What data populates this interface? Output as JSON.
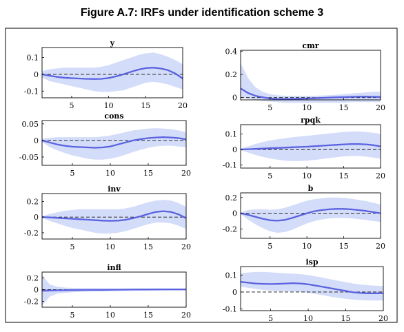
{
  "figure": {
    "title": "Figure A.7: IRFs under identification scheme 3"
  },
  "chart_data": [
    {
      "type": "line",
      "title": "y",
      "xlim": [
        1,
        20
      ],
      "ylim": [
        -0.14,
        0.16
      ],
      "xticks": [
        5,
        10,
        15,
        20
      ],
      "yticks": [
        0.1,
        0,
        -0.1
      ],
      "ytick_labels": [
        "0.1",
        "0",
        "-0.1"
      ],
      "x": [
        1,
        2,
        3,
        4,
        5,
        6,
        7,
        8,
        9,
        10,
        11,
        12,
        13,
        14,
        15,
        16,
        17,
        18,
        19,
        20
      ],
      "series": [
        {
          "values": [
            0,
            -0.008,
            -0.015,
            -0.02,
            -0.023,
            -0.025,
            -0.027,
            -0.028,
            -0.027,
            -0.022,
            -0.012,
            0,
            0.015,
            0.028,
            0.037,
            0.04,
            0.035,
            0.025,
            0.005,
            -0.025
          ],
          "lower": [
            -0.02,
            -0.04,
            -0.05,
            -0.06,
            -0.07,
            -0.08,
            -0.09,
            -0.1,
            -0.105,
            -0.105,
            -0.1,
            -0.095,
            -0.08,
            -0.065,
            -0.05,
            -0.045,
            -0.05,
            -0.06,
            -0.075,
            -0.09
          ],
          "upper": [
            0.02,
            0.03,
            0.035,
            0.04,
            0.04,
            0.04,
            0.04,
            0.04,
            0.045,
            0.055,
            0.07,
            0.085,
            0.1,
            0.115,
            0.125,
            0.13,
            0.12,
            0.105,
            0.085,
            0.06
          ]
        }
      ]
    },
    {
      "type": "line",
      "title": "cmr",
      "xlim": [
        1,
        20
      ],
      "ylim": [
        -0.02,
        0.41
      ],
      "xticks": [
        5,
        10,
        15,
        20
      ],
      "yticks": [
        0.4,
        0.2,
        0
      ],
      "ytick_labels": [
        "0.4",
        "0.2",
        "0"
      ],
      "x": [
        1,
        2,
        3,
        4,
        5,
        6,
        7,
        8,
        9,
        10,
        11,
        12,
        13,
        14,
        15,
        16,
        17,
        18,
        19,
        20
      ],
      "series": [
        {
          "values": [
            0.08,
            0.04,
            0.015,
            0.002,
            -0.008,
            -0.012,
            -0.013,
            -0.012,
            -0.01,
            -0.008,
            -0.006,
            -0.003,
            0,
            0.002,
            0.004,
            0.006,
            0.008,
            0.008,
            0.007,
            0.005
          ],
          "lower": [
            0,
            -0.01,
            -0.02,
            -0.03,
            -0.035,
            -0.04,
            -0.045,
            -0.045,
            -0.045,
            -0.045,
            -0.045,
            -0.045,
            -0.045,
            -0.045,
            -0.045,
            -0.04,
            -0.04,
            -0.04,
            -0.04,
            -0.04
          ],
          "upper": [
            0.3,
            0.17,
            0.09,
            0.05,
            0.03,
            0.02,
            0.015,
            0.015,
            0.015,
            0.015,
            0.015,
            0.018,
            0.02,
            0.025,
            0.03,
            0.035,
            0.04,
            0.045,
            0.05,
            0.05
          ]
        }
      ]
    },
    {
      "type": "line",
      "title": "cons",
      "xlim": [
        1,
        20
      ],
      "ylim": [
        -0.075,
        0.06
      ],
      "xticks": [
        5,
        10,
        15,
        20
      ],
      "yticks": [
        0.05,
        0,
        -0.05
      ],
      "ytick_labels": [
        "0.05",
        "0",
        "-0.05"
      ],
      "x": [
        1,
        2,
        3,
        4,
        5,
        6,
        7,
        8,
        9,
        10,
        11,
        12,
        13,
        14,
        15,
        16,
        17,
        18,
        19,
        20
      ],
      "series": [
        {
          "values": [
            0,
            -0.006,
            -0.012,
            -0.016,
            -0.019,
            -0.02,
            -0.021,
            -0.022,
            -0.021,
            -0.018,
            -0.012,
            -0.006,
            0,
            0.004,
            0.007,
            0.009,
            0.01,
            0.009,
            0.007,
            0.003
          ],
          "lower": [
            -0.005,
            -0.02,
            -0.03,
            -0.038,
            -0.045,
            -0.05,
            -0.055,
            -0.058,
            -0.058,
            -0.055,
            -0.05,
            -0.043,
            -0.035,
            -0.028,
            -0.022,
            -0.018,
            -0.016,
            -0.016,
            -0.018,
            -0.02
          ],
          "upper": [
            0.005,
            0.008,
            0.01,
            0.01,
            0.01,
            0.01,
            0.01,
            0.01,
            0.012,
            0.015,
            0.02,
            0.025,
            0.03,
            0.033,
            0.036,
            0.037,
            0.036,
            0.034,
            0.03,
            0.025
          ]
        }
      ]
    },
    {
      "type": "line",
      "title": "rpqk",
      "xlim": [
        1,
        20
      ],
      "ylim": [
        -0.12,
        0.16
      ],
      "xticks": [
        5,
        10,
        15,
        20
      ],
      "yticks": [
        0.1,
        0,
        -0.1
      ],
      "ytick_labels": [
        "0.1",
        "0",
        "-0.1"
      ],
      "x": [
        1,
        2,
        3,
        4,
        5,
        6,
        7,
        8,
        9,
        10,
        11,
        12,
        13,
        14,
        15,
        16,
        17,
        18,
        19,
        20
      ],
      "series": [
        {
          "values": [
            0,
            0.002,
            0.004,
            0.006,
            0.008,
            0.01,
            0.012,
            0.014,
            0.016,
            0.018,
            0.021,
            0.024,
            0.027,
            0.03,
            0.033,
            0.035,
            0.035,
            0.033,
            0.028,
            0.02
          ],
          "lower": [
            -0.005,
            -0.02,
            -0.035,
            -0.048,
            -0.058,
            -0.066,
            -0.072,
            -0.075,
            -0.075,
            -0.072,
            -0.068,
            -0.062,
            -0.056,
            -0.05,
            -0.045,
            -0.042,
            -0.042,
            -0.046,
            -0.052,
            -0.06
          ],
          "upper": [
            0.005,
            0.02,
            0.035,
            0.048,
            0.058,
            0.066,
            0.072,
            0.078,
            0.083,
            0.088,
            0.093,
            0.098,
            0.103,
            0.108,
            0.113,
            0.116,
            0.116,
            0.113,
            0.108,
            0.1
          ]
        }
      ]
    },
    {
      "type": "line",
      "title": "inv",
      "xlim": [
        1,
        20
      ],
      "ylim": [
        -0.28,
        0.3
      ],
      "xticks": [
        5,
        10,
        15,
        20
      ],
      "yticks": [
        0.2,
        0,
        -0.2
      ],
      "ytick_labels": [
        "0.2",
        "0",
        "-0.2"
      ],
      "x": [
        1,
        2,
        3,
        4,
        5,
        6,
        7,
        8,
        9,
        10,
        11,
        12,
        13,
        14,
        15,
        16,
        17,
        18,
        19,
        20
      ],
      "series": [
        {
          "values": [
            0,
            -0.005,
            -0.01,
            -0.016,
            -0.022,
            -0.028,
            -0.034,
            -0.04,
            -0.045,
            -0.048,
            -0.045,
            -0.035,
            -0.015,
            0.01,
            0.04,
            0.065,
            0.075,
            0.065,
            0.035,
            -0.015
          ],
          "lower": [
            -0.01,
            -0.05,
            -0.08,
            -0.11,
            -0.14,
            -0.16,
            -0.18,
            -0.2,
            -0.21,
            -0.21,
            -0.2,
            -0.18,
            -0.15,
            -0.12,
            -0.09,
            -0.07,
            -0.07,
            -0.08,
            -0.11,
            -0.15
          ],
          "upper": [
            0.01,
            0.04,
            0.06,
            0.08,
            0.09,
            0.1,
            0.1,
            0.1,
            0.1,
            0.1,
            0.1,
            0.11,
            0.13,
            0.16,
            0.19,
            0.21,
            0.22,
            0.21,
            0.18,
            0.13
          ]
        }
      ]
    },
    {
      "type": "line",
      "title": "b",
      "xlim": [
        1,
        20
      ],
      "ylim": [
        -0.32,
        0.26
      ],
      "xticks": [
        5,
        10,
        15,
        20
      ],
      "yticks": [
        0.2,
        0,
        -0.2
      ],
      "ytick_labels": [
        "0.2",
        "0",
        "-0.2"
      ],
      "x": [
        1,
        2,
        3,
        4,
        5,
        6,
        7,
        8,
        9,
        10,
        11,
        12,
        13,
        14,
        15,
        16,
        17,
        18,
        19,
        20
      ],
      "series": [
        {
          "values": [
            0,
            -0.02,
            -0.045,
            -0.07,
            -0.09,
            -0.095,
            -0.085,
            -0.06,
            -0.03,
            0,
            0.025,
            0.04,
            0.05,
            0.055,
            0.055,
            0.05,
            0.04,
            0.03,
            0.015,
            0
          ],
          "lower": [
            -0.01,
            -0.08,
            -0.14,
            -0.19,
            -0.23,
            -0.25,
            -0.24,
            -0.21,
            -0.17,
            -0.13,
            -0.1,
            -0.08,
            -0.065,
            -0.06,
            -0.06,
            -0.065,
            -0.075,
            -0.085,
            -0.1,
            -0.11
          ],
          "upper": [
            0.01,
            0.04,
            0.05,
            0.05,
            0.045,
            0.05,
            0.07,
            0.1,
            0.13,
            0.16,
            0.18,
            0.19,
            0.2,
            0.2,
            0.195,
            0.185,
            0.17,
            0.155,
            0.135,
            0.11
          ]
        }
      ]
    },
    {
      "type": "line",
      "title": "infl",
      "xlim": [
        1,
        20
      ],
      "ylim": [
        -0.3,
        0.3
      ],
      "xticks": [
        5,
        10,
        15,
        20
      ],
      "yticks": [
        0.2,
        0,
        -0.2
      ],
      "ytick_labels": [
        "0.2",
        "0",
        "-0.2"
      ],
      "x": [
        1,
        2,
        3,
        4,
        5,
        6,
        7,
        8,
        9,
        10,
        11,
        12,
        13,
        14,
        15,
        16,
        17,
        18,
        19,
        20
      ],
      "series": [
        {
          "values": [
            -0.02,
            -0.015,
            -0.012,
            -0.01,
            -0.008,
            -0.006,
            -0.005,
            -0.004,
            -0.003,
            -0.002,
            -0.001,
            0,
            0.001,
            0.002,
            0.002,
            0.003,
            0.003,
            0.003,
            0.004,
            0.004
          ],
          "lower": [
            -0.28,
            -0.12,
            -0.07,
            -0.055,
            -0.045,
            -0.04,
            -0.035,
            -0.032,
            -0.03,
            -0.027,
            -0.025,
            -0.022,
            -0.02,
            -0.018,
            -0.016,
            -0.014,
            -0.013,
            -0.012,
            -0.011,
            -0.01
          ],
          "upper": [
            0.25,
            0.09,
            0.05,
            0.035,
            0.03,
            0.027,
            0.025,
            0.023,
            0.022,
            0.021,
            0.02,
            0.02,
            0.02,
            0.02,
            0.02,
            0.02,
            0.02,
            0.02,
            0.02,
            0.02
          ]
        }
      ]
    },
    {
      "type": "line",
      "title": "isp",
      "xlim": [
        1,
        20
      ],
      "ylim": [
        -0.11,
        0.15
      ],
      "xticks": [
        5,
        10,
        15,
        20
      ],
      "yticks": [
        0.1,
        0,
        -0.1
      ],
      "ytick_labels": [
        "0.1",
        "0",
        "-0.1"
      ],
      "x": [
        1,
        2,
        3,
        4,
        5,
        6,
        7,
        8,
        9,
        10,
        11,
        12,
        13,
        14,
        15,
        16,
        17,
        18,
        19,
        20
      ],
      "series": [
        {
          "values": [
            0.06,
            0.055,
            0.05,
            0.048,
            0.047,
            0.048,
            0.05,
            0.052,
            0.05,
            0.045,
            0.038,
            0.03,
            0.022,
            0.014,
            0.006,
            -0.002,
            -0.006,
            -0.008,
            -0.008,
            -0.007
          ],
          "lower": [
            0.03,
            0.025,
            0.018,
            0.012,
            0.008,
            0.005,
            0.004,
            0.003,
            0.0,
            -0.005,
            -0.012,
            -0.02,
            -0.028,
            -0.035,
            -0.04,
            -0.045,
            -0.048,
            -0.05,
            -0.05,
            -0.05
          ],
          "upper": [
            0.11,
            0.115,
            0.118,
            0.118,
            0.116,
            0.113,
            0.11,
            0.108,
            0.105,
            0.1,
            0.092,
            0.084,
            0.075,
            0.066,
            0.058,
            0.05,
            0.044,
            0.04,
            0.037,
            0.035
          ]
        }
      ]
    }
  ]
}
